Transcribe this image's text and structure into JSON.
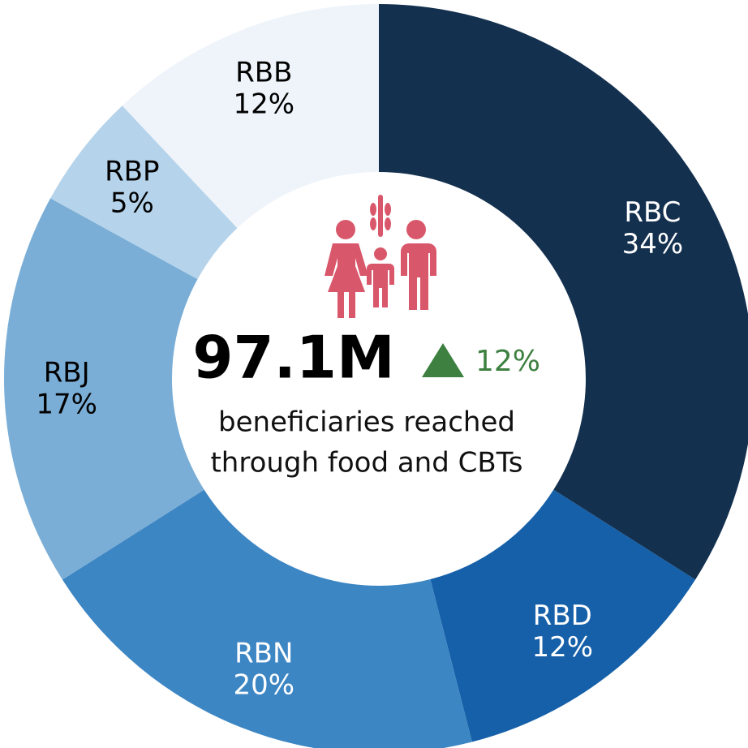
{
  "chart_data": {
    "type": "donut",
    "categories": [
      "RBC",
      "RBD",
      "RBN",
      "RBJ",
      "RBP",
      "RBB"
    ],
    "values": [
      34,
      12,
      20,
      17,
      5,
      12
    ],
    "value_labels": [
      "34%",
      "12%",
      "20%",
      "17%",
      "5%",
      "12%"
    ],
    "colors": [
      "#14304f",
      "#1560a8",
      "#3d86c4",
      "#7aaed6",
      "#b5d3ea",
      "#eef4fa"
    ],
    "center_value": "97.1M",
    "change": "12%",
    "subtitle_lines": [
      "beneficiaries reached",
      "through food and CBTs"
    ]
  }
}
